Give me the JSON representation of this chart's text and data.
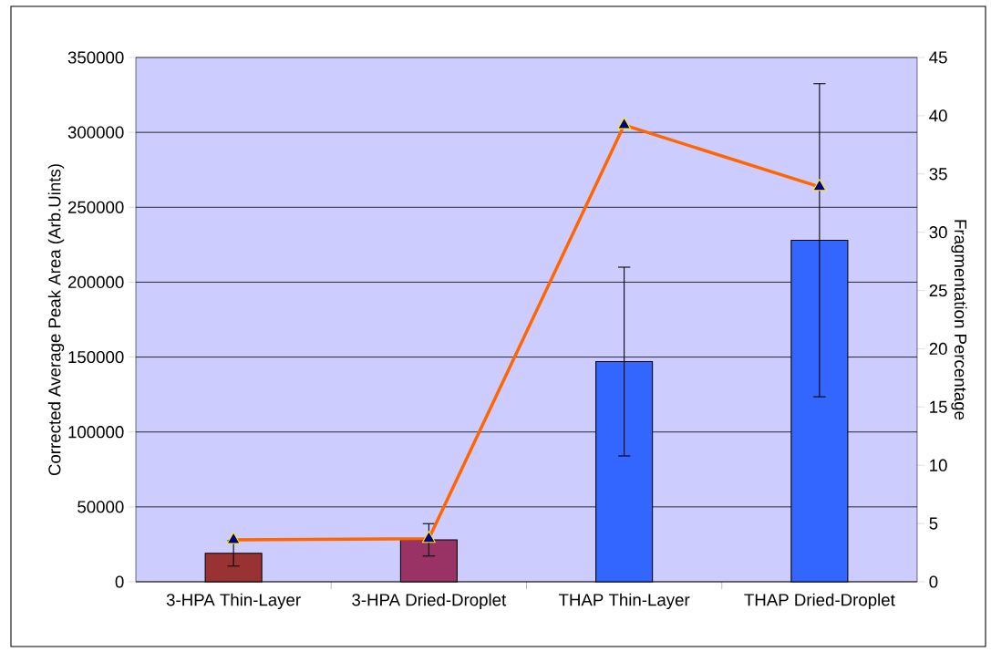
{
  "chart_data": {
    "type": "bar",
    "categories": [
      "3-HPA Thin-Layer",
      "3-HPA Dried-Droplet",
      "THAP Thin-Layer",
      "THAP Dried-Droplet"
    ],
    "ylabel": "Corrected Average Peak Area (Arb.Uints)",
    "y2label": "Fragmentation Percentage",
    "series": [
      {
        "values": [
          19000,
          28000,
          147000,
          228000
        ],
        "colors": [
          "#993333",
          "#993366",
          "#3366ff",
          "#3366ff"
        ],
        "errors": [
          8500,
          10800,
          63000,
          104500
        ]
      },
      {
        "type": "line",
        "axis": "y2",
        "color": "#ff6600",
        "values": [
          3.6,
          3.7,
          39.2,
          33.9
        ],
        "marker": "triangle",
        "line_style": "solid"
      }
    ],
    "ylim": [
      0,
      350000
    ],
    "yticks": [
      0,
      50000,
      100000,
      150000,
      200000,
      250000,
      300000,
      350000
    ],
    "y2lim": [
      0,
      45
    ],
    "y2ticks": [
      0,
      5,
      10,
      15,
      20,
      25,
      30,
      35,
      40,
      45
    ],
    "grid": "y",
    "legend": false
  }
}
